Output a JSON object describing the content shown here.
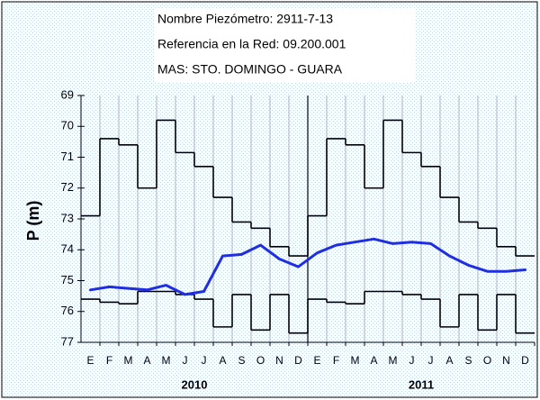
{
  "chart_data": {
    "type": "line",
    "title": [
      "Nombre Piezómetro: 2911-7-13",
      "Referencia en la Red:  09.200.001",
      "MAS: STO. DOMINGO - GUARA"
    ],
    "ylabel": "P (m)",
    "categories": [
      "E",
      "F",
      "M",
      "A",
      "M",
      "J",
      "J",
      "A",
      "S",
      "O",
      "N",
      "D",
      "E",
      "F",
      "M",
      "A",
      "M",
      "J",
      "J",
      "A",
      "S",
      "O",
      "N",
      "D"
    ],
    "years": [
      "2010",
      "2011"
    ],
    "ylim": [
      77,
      69
    ],
    "yticks": [
      69,
      70,
      71,
      72,
      73,
      74,
      75,
      76,
      77
    ],
    "series": [
      {
        "color": "#000000",
        "step": true,
        "values": [
          72.9,
          70.4,
          70.6,
          72.0,
          69.8,
          70.85,
          71.3,
          72.3,
          73.1,
          73.3,
          73.9,
          74.2,
          72.9,
          70.4,
          70.6,
          72.0,
          69.8,
          70.85,
          71.3,
          72.3,
          73.1,
          73.3,
          73.9,
          74.2
        ]
      },
      {
        "color": "#000000",
        "step": true,
        "values": [
          75.6,
          75.7,
          75.75,
          75.35,
          75.35,
          75.45,
          75.6,
          76.5,
          75.45,
          76.6,
          75.45,
          76.7,
          75.6,
          75.7,
          75.75,
          75.35,
          75.35,
          75.45,
          75.6,
          76.5,
          75.45,
          76.6,
          75.45,
          76.7
        ]
      },
      {
        "color": "#1f2fe0",
        "step": false,
        "values": [
          75.3,
          75.2,
          75.25,
          75.3,
          75.15,
          75.45,
          75.35,
          74.2,
          74.15,
          73.85,
          74.3,
          74.55,
          74.1,
          73.85,
          73.75,
          73.65,
          73.8,
          73.75,
          73.8,
          74.2,
          74.5,
          74.7,
          74.7,
          74.65
        ]
      }
    ]
  }
}
